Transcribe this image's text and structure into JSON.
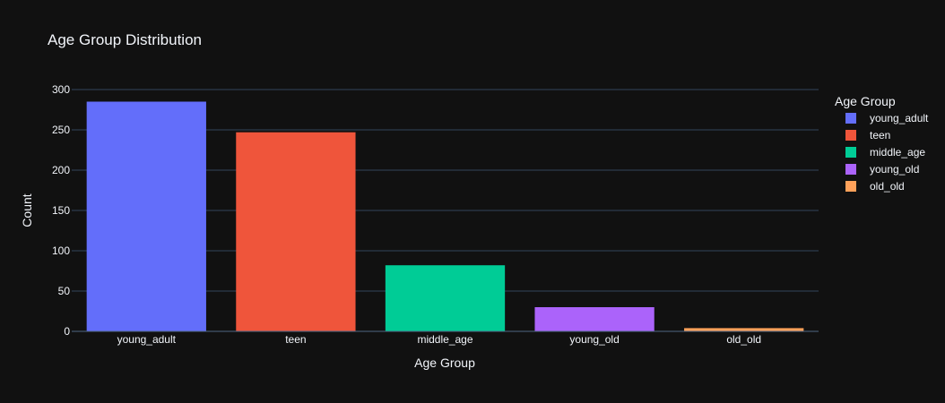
{
  "chart_data": {
    "type": "bar",
    "title": "Age Group Distribution",
    "xlabel": "Age Group",
    "ylabel": "Count",
    "categories": [
      "young_adult",
      "teen",
      "middle_age",
      "young_old",
      "old_old"
    ],
    "values": [
      285,
      247,
      82,
      30,
      4
    ],
    "colors": [
      "#636efa",
      "#EF553B",
      "#00cc96",
      "#ab63fa",
      "#FFA15A"
    ],
    "ylim": [
      0,
      300
    ],
    "yticks": [
      0,
      50,
      100,
      150,
      200,
      250,
      300
    ],
    "ytick_labels": [
      "0",
      "50",
      "100",
      "150",
      "200",
      "250",
      "300"
    ],
    "grid": true,
    "legend": {
      "title": "Age Group",
      "placement": "right",
      "entries": [
        "young_adult",
        "teen",
        "middle_age",
        "young_old",
        "old_old"
      ]
    }
  },
  "theme": {
    "background": "#111111",
    "grid_color": "#283442",
    "text_color": "#f2f5fa"
  }
}
